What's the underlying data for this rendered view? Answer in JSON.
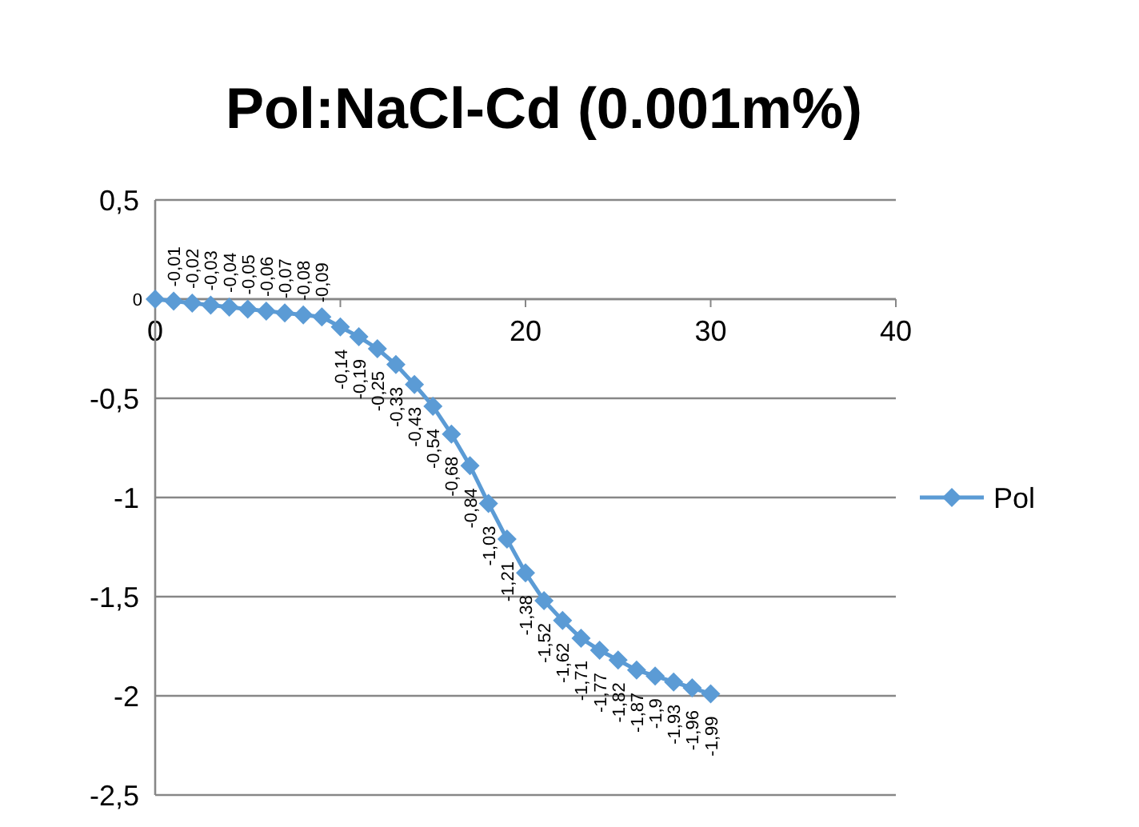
{
  "chart_data": {
    "type": "line",
    "title": "Pol:NaCl-Cd (0.001m%)",
    "x": [
      0,
      1,
      2,
      3,
      4,
      5,
      6,
      7,
      8,
      9,
      10,
      11,
      12,
      13,
      14,
      15,
      16,
      17,
      18,
      19,
      20,
      21,
      22,
      23,
      24,
      25,
      26,
      27,
      28,
      29,
      30
    ],
    "series": [
      {
        "name": "Pol",
        "color": "#5b9bd5",
        "values": [
          0,
          -0.01,
          -0.02,
          -0.03,
          -0.04,
          -0.05,
          -0.06,
          -0.07,
          -0.08,
          -0.09,
          -0.14,
          -0.19,
          -0.25,
          -0.33,
          -0.43,
          -0.54,
          -0.68,
          -0.84,
          -1.03,
          -1.21,
          -1.38,
          -1.52,
          -1.62,
          -1.71,
          -1.77,
          -1.82,
          -1.87,
          -1.9,
          -1.93,
          -1.96,
          -1.99
        ],
        "value_labels": [
          "0",
          "-0,01",
          "-0,02",
          "-0,03",
          "-0,04",
          "-0,05",
          "-0,06",
          "-0,07",
          "-0,08",
          "-0,09",
          "-0,14",
          "-0,19",
          "-0,25",
          "-0,33",
          "-0,43",
          "-0,54",
          "-0,68",
          "-0,84",
          "-1,03",
          "-1,21",
          "-1,38",
          "-1,52",
          "-1,62",
          "-1,71",
          "-1,77",
          "-1,82",
          "-1,87",
          "-1,9",
          "-1,93",
          "-1,96",
          "-1,99"
        ]
      }
    ],
    "xlim": [
      0,
      40
    ],
    "xticks": [
      0,
      {
        "value": 10,
        "label": null
      },
      20,
      30,
      40
    ],
    "ylim": [
      -2.5,
      0.5
    ],
    "yticks": [
      {
        "value": 0.5,
        "label": "0,5"
      },
      {
        "value": 0,
        "label": null
      },
      {
        "value": -0.5,
        "label": "-0,5"
      },
      -1,
      {
        "value": -1.5,
        "label": "-1,5"
      },
      -2,
      {
        "value": -2.5,
        "label": "-2,5"
      }
    ],
    "grid": "y",
    "legend": "right",
    "marker": "diamond",
    "line_style": "solid"
  }
}
